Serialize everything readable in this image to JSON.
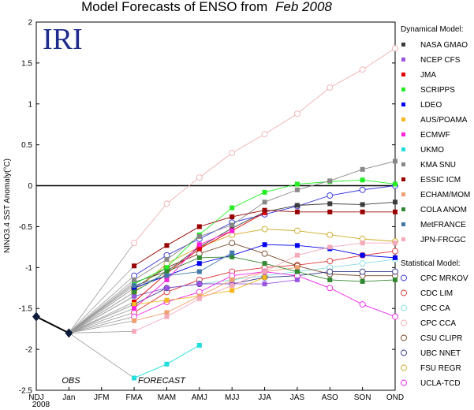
{
  "chart_data": {
    "type": "line",
    "title_main": "Model Forecasts of ENSO from",
    "title_date": "Feb 2008",
    "logo_text": "IRI",
    "ylabel": "NINO3.4 SST Anomaly(°C)",
    "ylim": [
      -2.5,
      2
    ],
    "yticks": [
      -2.5,
      -2,
      -1.5,
      -1,
      -0.5,
      0,
      0.5,
      1,
      1.5,
      2
    ],
    "categories": [
      "NDJ",
      "Jan",
      "JFM",
      "FMA",
      "MAM",
      "AMJ",
      "MJJ",
      "JJA",
      "JAS",
      "ASO",
      "SON",
      "OND"
    ],
    "year_label": "2008",
    "obs_label": "OBS",
    "forecast_label": "FORECAST",
    "observed": [
      -1.6,
      -1.8
    ],
    "forecast_start_index": 3,
    "legend_dynamical_title": "Dynamical Model:",
    "legend_statistical_title": "Statistical Model:",
    "dynamical": [
      {
        "name": "NASA GMAO",
        "color": "#3c3c3c",
        "values": [
          -1.18,
          -1.05,
          -0.75,
          -0.52,
          -0.32,
          -0.24,
          -0.22,
          -0.23,
          -0.2
        ]
      },
      {
        "name": "NCEP CFS",
        "color": "#9955dd",
        "values": [
          -1.35,
          -1.25,
          -1.2,
          -1.2,
          -1.2,
          -1.15,
          null,
          null,
          null
        ]
      },
      {
        "name": "JMA",
        "color": "#e00000",
        "values": [
          -1.42,
          -1.07,
          -0.77,
          -0.55,
          -0.33,
          null,
          null,
          null,
          null
        ]
      },
      {
        "name": "SCRIPPS",
        "color": "#22ee22",
        "values": [
          -1.2,
          -1.0,
          -0.6,
          -0.27,
          -0.08,
          0.02,
          0.05,
          0.07,
          0.02
        ]
      },
      {
        "name": "LDEO",
        "color": "#0000ee",
        "values": [
          -1.25,
          -1.1,
          -0.95,
          -0.85,
          -0.72,
          -0.73,
          -0.77,
          -0.85,
          -0.88
        ]
      },
      {
        "name": "AUS/POAMA",
        "color": "#f5b820",
        "values": [
          -1.45,
          -1.4,
          -1.35,
          -1.28,
          -1.12,
          null,
          null,
          null,
          null
        ]
      },
      {
        "name": "ECMWF",
        "color": "#ff22dd",
        "values": [
          -1.5,
          -1.15,
          -0.72,
          -0.55,
          null,
          null,
          null,
          null,
          null
        ]
      },
      {
        "name": "UKMO",
        "color": "#22dddd",
        "values": [
          -2.35,
          -2.18,
          -1.95,
          null,
          null,
          null,
          null,
          null,
          null
        ]
      },
      {
        "name": "KMA SNU",
        "color": "#888888",
        "values": [
          -1.15,
          -0.9,
          -0.62,
          -0.48,
          -0.2,
          -0.05,
          0.06,
          0.2,
          0.3
        ]
      },
      {
        "name": "ESSIC ICM",
        "color": "#990000",
        "values": [
          -0.98,
          -0.73,
          -0.5,
          -0.38,
          -0.3,
          -0.32,
          -0.32,
          -0.32,
          -0.32
        ]
      },
      {
        "name": "ECHAM/MOM",
        "color": "#f0a070",
        "values": [
          -1.65,
          -1.55,
          -1.35,
          -1.15,
          -1.05,
          -1.0,
          null,
          null,
          null
        ]
      },
      {
        "name": "COLA ANOM",
        "color": "#338833",
        "values": [
          -1.3,
          -1.05,
          -0.88,
          -0.87,
          -0.95,
          -1.05,
          -1.15,
          -1.17,
          -1.15
        ]
      },
      {
        "name": "MetFRANCE",
        "color": "#4477aa",
        "values": [
          -1.22,
          -1.1,
          -1.05,
          -0.82,
          null,
          null,
          null,
          null,
          null
        ]
      },
      {
        "name": "JPN-FRCGC",
        "color": "#f4aabb",
        "values": [
          -1.78,
          -1.6,
          -1.38,
          -1.22,
          -1.05,
          -0.85,
          -0.75,
          -0.7,
          -0.7
        ]
      }
    ],
    "statistical": [
      {
        "name": "CPC MRKOV",
        "color": "#3333dd",
        "values": [
          -1.1,
          -0.85,
          -0.65,
          -0.45,
          -0.35,
          -0.25,
          -0.12,
          -0.05,
          0.0
        ]
      },
      {
        "name": "CDC LIM",
        "color": "#dd3333",
        "values": [
          -1.55,
          -1.3,
          -1.15,
          -1.05,
          -1.0,
          -0.97,
          -0.92,
          -0.85,
          -0.8
        ]
      },
      {
        "name": "CPC CA",
        "color": "#88dddd",
        "values": [
          -1.35,
          -1.25,
          -1.2,
          -1.15,
          -1.1,
          -1.05,
          -1.0,
          -0.95,
          -0.9
        ]
      },
      {
        "name": "CPC CCA",
        "color": "#f0b0b0",
        "values": [
          -0.7,
          -0.22,
          0.1,
          0.4,
          0.63,
          0.88,
          1.2,
          1.42,
          1.68
        ]
      },
      {
        "name": "CSU CLIPR",
        "color": "#774422",
        "values": [
          -1.25,
          -1.0,
          -0.83,
          -0.7,
          -0.83,
          -0.98,
          -1.08,
          -1.1,
          -1.1
        ]
      },
      {
        "name": "UBC NNET",
        "color": "#333388",
        "values": [
          -1.45,
          -1.25,
          -1.2,
          -1.2,
          -1.12,
          -1.1,
          -1.05,
          -1.05,
          -1.05
        ]
      },
      {
        "name": "FSU REGR",
        "color": "#ccaa22",
        "values": [
          -1.3,
          -0.95,
          -0.75,
          -0.6,
          -0.53,
          -0.55,
          -0.6,
          -0.65,
          -0.68
        ]
      },
      {
        "name": "UCLA-TCD",
        "color": "#ee22ee",
        "values": [
          -1.6,
          -1.42,
          -1.3,
          -1.1,
          -1.05,
          -1.1,
          -1.25,
          -1.45,
          -1.6
        ]
      }
    ],
    "zero_line": true,
    "legend_position": "right",
    "grid": false
  }
}
